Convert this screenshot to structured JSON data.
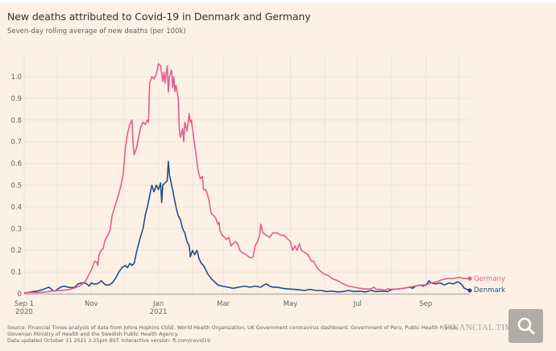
{
  "chart_data": {
    "type": "line",
    "title": "New deaths attributed to Covid-19 in Denmark and Germany",
    "subtitle": "Seven-day rolling average of new deaths (per 100k)",
    "xlabel": "",
    "ylabel": "",
    "x_unit": "days since Sep 1 2020",
    "xlim": [
      0,
      405
    ],
    "ylim": [
      0,
      1.08
    ],
    "grid": true,
    "y_ticks": [
      {
        "value": 0,
        "label": "0"
      },
      {
        "value": 0.1,
        "label": "0.1"
      },
      {
        "value": 0.2,
        "label": "0.2"
      },
      {
        "value": 0.3,
        "label": "0.3"
      },
      {
        "value": 0.4,
        "label": "0.4"
      },
      {
        "value": 0.5,
        "label": "0.5"
      },
      {
        "value": 0.6,
        "label": "0.6"
      },
      {
        "value": 0.7,
        "label": "0.7"
      },
      {
        "value": 0.8,
        "label": "0.8"
      },
      {
        "value": 0.9,
        "label": "0.9"
      },
      {
        "value": 1.0,
        "label": "1.0"
      }
    ],
    "x_gridlines": [
      0,
      30,
      61,
      91,
      122,
      153,
      181,
      212,
      242,
      273,
      303,
      334,
      365,
      395
    ],
    "x_ticks": [
      {
        "day": 0,
        "label": "Sep 1",
        "sublabel": "2020"
      },
      {
        "day": 61,
        "label": "Nov",
        "sublabel": ""
      },
      {
        "day": 122,
        "label": "Jan",
        "sublabel": "2021"
      },
      {
        "day": 181,
        "label": "Mar",
        "sublabel": ""
      },
      {
        "day": 242,
        "label": "May",
        "sublabel": ""
      },
      {
        "day": 303,
        "label": "Jul",
        "sublabel": ""
      },
      {
        "day": 365,
        "label": "Sep",
        "sublabel": ""
      }
    ],
    "legend_placement": "right-end-of-lines",
    "series": [
      {
        "name": "Germany",
        "color": "#e05e8f",
        "points": [
          [
            0,
            0.005
          ],
          [
            5,
            0.006
          ],
          [
            10,
            0.005
          ],
          [
            15,
            0.006
          ],
          [
            20,
            0.008
          ],
          [
            25,
            0.012
          ],
          [
            30,
            0.015
          ],
          [
            35,
            0.016
          ],
          [
            40,
            0.018
          ],
          [
            45,
            0.025
          ],
          [
            50,
            0.035
          ],
          [
            53,
            0.045
          ],
          [
            56,
            0.06
          ],
          [
            59,
            0.09
          ],
          [
            62,
            0.12
          ],
          [
            64,
            0.15
          ],
          [
            66,
            0.145
          ],
          [
            67,
            0.13
          ],
          [
            68,
            0.18
          ],
          [
            70,
            0.2
          ],
          [
            72,
            0.21
          ],
          [
            73,
            0.24
          ],
          [
            75,
            0.26
          ],
          [
            78,
            0.29
          ],
          [
            80,
            0.36
          ],
          [
            83,
            0.41
          ],
          [
            86,
            0.46
          ],
          [
            88,
            0.5
          ],
          [
            90,
            0.55
          ],
          [
            92,
            0.67
          ],
          [
            94,
            0.74
          ],
          [
            96,
            0.78
          ],
          [
            98,
            0.8
          ],
          [
            99,
            0.69
          ],
          [
            100,
            0.64
          ],
          [
            102,
            0.67
          ],
          [
            104,
            0.72
          ],
          [
            106,
            0.77
          ],
          [
            108,
            0.79
          ],
          [
            110,
            0.78
          ],
          [
            112,
            0.8
          ],
          [
            113,
            0.79
          ],
          [
            114,
            0.97
          ],
          [
            116,
            1.0
          ],
          [
            118,
            0.99
          ],
          [
            120,
            1.01
          ],
          [
            122,
            1.06
          ],
          [
            124,
            1.05
          ],
          [
            126,
            0.98
          ],
          [
            127,
            1.02
          ],
          [
            128,
            0.97
          ],
          [
            130,
            1.05
          ],
          [
            131,
            0.93
          ],
          [
            132,
            1.0
          ],
          [
            134,
            1.03
          ],
          [
            135,
            0.95
          ],
          [
            136,
            1.0
          ],
          [
            137,
            0.93
          ],
          [
            138,
            0.96
          ],
          [
            140,
            0.9
          ],
          [
            141,
            0.76
          ],
          [
            142,
            0.72
          ],
          [
            144,
            0.76
          ],
          [
            145,
            0.7
          ],
          [
            146,
            0.79
          ],
          [
            148,
            0.75
          ],
          [
            150,
            0.83
          ],
          [
            151,
            0.79
          ],
          [
            152,
            0.8
          ],
          [
            154,
            0.72
          ],
          [
            156,
            0.65
          ],
          [
            158,
            0.57
          ],
          [
            160,
            0.53
          ],
          [
            162,
            0.54
          ],
          [
            163,
            0.48
          ],
          [
            165,
            0.48
          ],
          [
            167,
            0.45
          ],
          [
            168,
            0.43
          ],
          [
            170,
            0.37
          ],
          [
            172,
            0.36
          ],
          [
            174,
            0.35
          ],
          [
            176,
            0.32
          ],
          [
            177,
            0.33
          ],
          [
            178,
            0.29
          ],
          [
            180,
            0.27
          ],
          [
            182,
            0.26
          ],
          [
            184,
            0.25
          ],
          [
            186,
            0.26
          ],
          [
            188,
            0.22
          ],
          [
            190,
            0.23
          ],
          [
            192,
            0.24
          ],
          [
            194,
            0.23
          ],
          [
            196,
            0.2
          ],
          [
            198,
            0.19
          ],
          [
            200,
            0.185
          ],
          [
            202,
            0.18
          ],
          [
            204,
            0.17
          ],
          [
            206,
            0.165
          ],
          [
            208,
            0.17
          ],
          [
            210,
            0.22
          ],
          [
            212,
            0.24
          ],
          [
            214,
            0.27
          ],
          [
            215,
            0.32
          ],
          [
            217,
            0.28
          ],
          [
            220,
            0.27
          ],
          [
            223,
            0.26
          ],
          [
            226,
            0.28
          ],
          [
            230,
            0.28
          ],
          [
            233,
            0.27
          ],
          [
            236,
            0.27
          ],
          [
            240,
            0.25
          ],
          [
            242,
            0.24
          ],
          [
            244,
            0.2
          ],
          [
            246,
            0.22
          ],
          [
            248,
            0.2
          ],
          [
            250,
            0.23
          ],
          [
            252,
            0.2
          ],
          [
            255,
            0.19
          ],
          [
            258,
            0.18
          ],
          [
            261,
            0.15
          ],
          [
            263,
            0.15
          ],
          [
            265,
            0.13
          ],
          [
            267,
            0.115
          ],
          [
            270,
            0.1
          ],
          [
            273,
            0.09
          ],
          [
            276,
            0.085
          ],
          [
            280,
            0.07
          ],
          [
            285,
            0.06
          ],
          [
            290,
            0.045
          ],
          [
            295,
            0.035
          ],
          [
            300,
            0.03
          ],
          [
            305,
            0.025
          ],
          [
            310,
            0.022
          ],
          [
            315,
            0.022
          ],
          [
            318,
            0.03
          ],
          [
            320,
            0.02
          ],
          [
            325,
            0.02
          ],
          [
            328,
            0.015
          ],
          [
            330,
            0.022
          ],
          [
            335,
            0.02
          ],
          [
            340,
            0.022
          ],
          [
            345,
            0.025
          ],
          [
            350,
            0.03
          ],
          [
            355,
            0.035
          ],
          [
            360,
            0.04
          ],
          [
            365,
            0.04
          ],
          [
            370,
            0.05
          ],
          [
            375,
            0.055
          ],
          [
            380,
            0.065
          ],
          [
            385,
            0.07
          ],
          [
            390,
            0.07
          ],
          [
            395,
            0.075
          ],
          [
            400,
            0.07
          ],
          [
            405,
            0.07
          ]
        ]
      },
      {
        "name": "Denmark",
        "color": "#1f4e8c",
        "points": [
          [
            0,
            0.003
          ],
          [
            4,
            0.006
          ],
          [
            8,
            0.01
          ],
          [
            12,
            0.012
          ],
          [
            16,
            0.018
          ],
          [
            20,
            0.025
          ],
          [
            22,
            0.03
          ],
          [
            24,
            0.025
          ],
          [
            26,
            0.015
          ],
          [
            28,
            0.012
          ],
          [
            30,
            0.02
          ],
          [
            33,
            0.03
          ],
          [
            36,
            0.035
          ],
          [
            40,
            0.03
          ],
          [
            43,
            0.028
          ],
          [
            46,
            0.03
          ],
          [
            49,
            0.045
          ],
          [
            52,
            0.05
          ],
          [
            55,
            0.05
          ],
          [
            57,
            0.045
          ],
          [
            59,
            0.035
          ],
          [
            61,
            0.05
          ],
          [
            63,
            0.045
          ],
          [
            66,
            0.045
          ],
          [
            68,
            0.05
          ],
          [
            70,
            0.06
          ],
          [
            72,
            0.05
          ],
          [
            74,
            0.04
          ],
          [
            77,
            0.04
          ],
          [
            80,
            0.05
          ],
          [
            83,
            0.07
          ],
          [
            86,
            0.1
          ],
          [
            89,
            0.12
          ],
          [
            92,
            0.13
          ],
          [
            94,
            0.12
          ],
          [
            96,
            0.14
          ],
          [
            98,
            0.13
          ],
          [
            100,
            0.14
          ],
          [
            102,
            0.19
          ],
          [
            105,
            0.25
          ],
          [
            108,
            0.3
          ],
          [
            110,
            0.36
          ],
          [
            112,
            0.4
          ],
          [
            114,
            0.45
          ],
          [
            116,
            0.5
          ],
          [
            118,
            0.47
          ],
          [
            120,
            0.5
          ],
          [
            122,
            0.48
          ],
          [
            124,
            0.51
          ],
          [
            125,
            0.42
          ],
          [
            126,
            0.5
          ],
          [
            128,
            0.51
          ],
          [
            130,
            0.52
          ],
          [
            131,
            0.61
          ],
          [
            132,
            0.55
          ],
          [
            134,
            0.5
          ],
          [
            136,
            0.45
          ],
          [
            138,
            0.4
          ],
          [
            140,
            0.36
          ],
          [
            142,
            0.34
          ],
          [
            144,
            0.3
          ],
          [
            146,
            0.28
          ],
          [
            148,
            0.24
          ],
          [
            150,
            0.22
          ],
          [
            151,
            0.17
          ],
          [
            153,
            0.2
          ],
          [
            155,
            0.18
          ],
          [
            157,
            0.2
          ],
          [
            159,
            0.16
          ],
          [
            161,
            0.14
          ],
          [
            163,
            0.13
          ],
          [
            165,
            0.11
          ],
          [
            167,
            0.09
          ],
          [
            170,
            0.07
          ],
          [
            173,
            0.055
          ],
          [
            176,
            0.04
          ],
          [
            180,
            0.035
          ],
          [
            185,
            0.03
          ],
          [
            190,
            0.025
          ],
          [
            195,
            0.03
          ],
          [
            200,
            0.035
          ],
          [
            205,
            0.03
          ],
          [
            210,
            0.035
          ],
          [
            215,
            0.03
          ],
          [
            218,
            0.04
          ],
          [
            220,
            0.045
          ],
          [
            223,
            0.035
          ],
          [
            226,
            0.03
          ],
          [
            230,
            0.03
          ],
          [
            235,
            0.025
          ],
          [
            240,
            0.022
          ],
          [
            245,
            0.02
          ],
          [
            250,
            0.018
          ],
          [
            255,
            0.015
          ],
          [
            260,
            0.02
          ],
          [
            265,
            0.015
          ],
          [
            270,
            0.015
          ],
          [
            275,
            0.01
          ],
          [
            280,
            0.012
          ],
          [
            285,
            0.008
          ],
          [
            290,
            0.01
          ],
          [
            295,
            0.015
          ],
          [
            300,
            0.01
          ],
          [
            305,
            0.012
          ],
          [
            310,
            0.008
          ],
          [
            315,
            0.015
          ],
          [
            320,
            0.01
          ],
          [
            325,
            0.012
          ],
          [
            330,
            0.01
          ],
          [
            335,
            0.02
          ],
          [
            340,
            0.022
          ],
          [
            345,
            0.025
          ],
          [
            350,
            0.03
          ],
          [
            353,
            0.025
          ],
          [
            356,
            0.035
          ],
          [
            360,
            0.04
          ],
          [
            363,
            0.035
          ],
          [
            366,
            0.045
          ],
          [
            368,
            0.06
          ],
          [
            370,
            0.05
          ],
          [
            374,
            0.045
          ],
          [
            378,
            0.05
          ],
          [
            382,
            0.04
          ],
          [
            386,
            0.05
          ],
          [
            390,
            0.045
          ],
          [
            394,
            0.055
          ],
          [
            396,
            0.05
          ],
          [
            398,
            0.04
          ],
          [
            400,
            0.025
          ],
          [
            405,
            0.015
          ]
        ]
      }
    ]
  },
  "source_lines": [
    "Source: Financial Times analysis of data from Johns Hopkins CSSE, World Health Organization, UK Government coronavirus dashboard, Government of Peru, Public Health France,",
    "Slovenian Ministry of Health and the Swedish Public Health Agency.",
    "Data updated October 11 2021 2.25pm BST. Interactive version: ft.com/covid19"
  ],
  "brand": "FINANCIAL TIMES",
  "zoom_button": {
    "icon": "magnifier-icon"
  }
}
